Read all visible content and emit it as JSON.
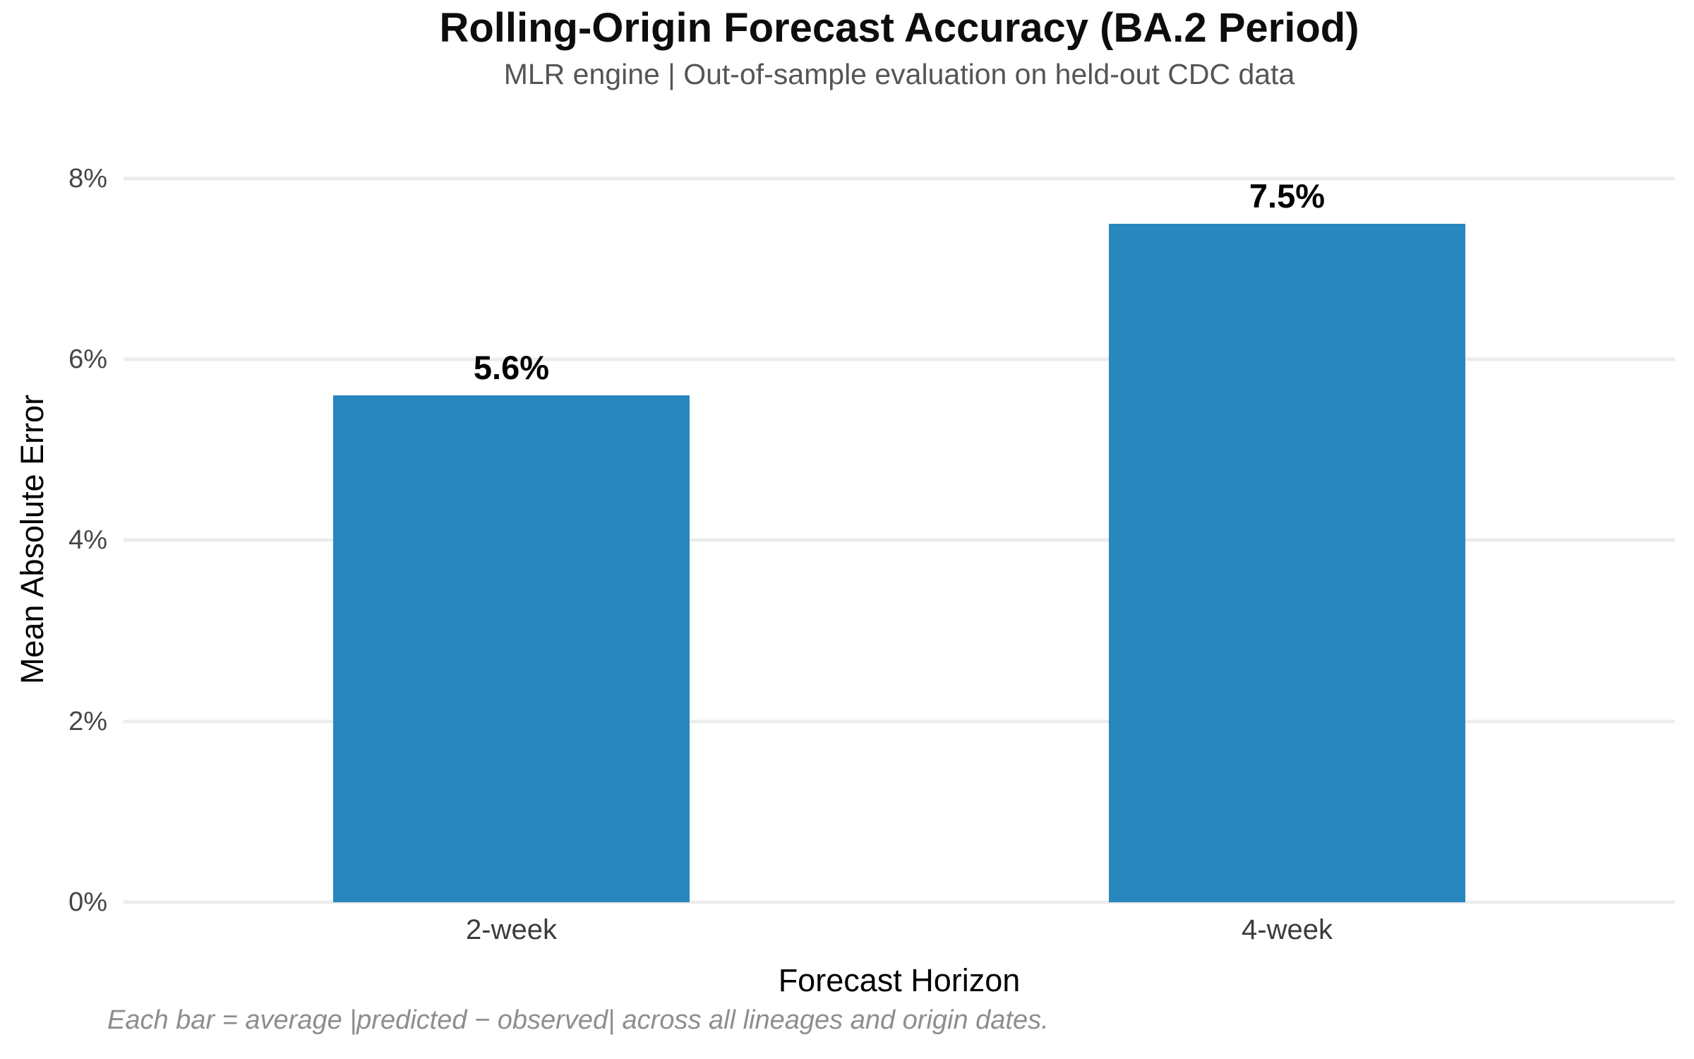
{
  "header": {
    "title": "Rolling-Origin Forecast Accuracy (BA.2 Period)",
    "subtitle": "MLR engine | Out-of-sample evaluation on held-out CDC data"
  },
  "chart_data": {
    "type": "bar",
    "categories": [
      "2-week",
      "4-week"
    ],
    "values": [
      5.6,
      7.5
    ],
    "value_labels": [
      "5.6%",
      "7.5%"
    ],
    "title": "Rolling-Origin Forecast Accuracy (BA.2 Period)",
    "subtitle": "MLR engine | Out-of-sample evaluation on held-out CDC data",
    "xlabel": "Forecast Horizon",
    "ylabel": "Mean Absolute Error",
    "ylim": [
      0,
      8.8
    ],
    "yticks": [
      0,
      2,
      4,
      6,
      8
    ],
    "ytick_labels": [
      "0%",
      "2%",
      "4%",
      "6%",
      "8%"
    ],
    "grid": "horizontal-only",
    "legend": "none",
    "bar_color": "#2887bd"
  },
  "footnote": {
    "text": "Each bar = average |predicted − observed| across all lineages and origin dates."
  },
  "colors": {
    "bar": "#2887bd",
    "gridline": "#ececec",
    "title": "#0d0d0d",
    "subtitle": "#555558",
    "tick_label": "#464646",
    "footnote": "#8e8e8e",
    "background": "#ffffff"
  }
}
